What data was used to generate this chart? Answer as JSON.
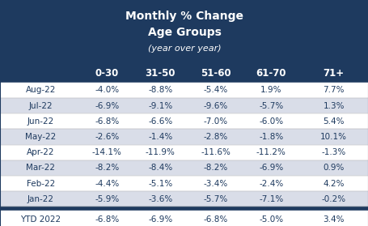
{
  "title_lines": [
    "Monthly % Change",
    "Age Groups",
    "(year over year)"
  ],
  "col_headers": [
    "0-30",
    "31-50",
    "51-60",
    "61-70",
    "71+"
  ],
  "row_labels": [
    "Aug-22",
    "Jul-22",
    "Jun-22",
    "May-22",
    "Apr-22",
    "Mar-22",
    "Feb-22",
    "Jan-22"
  ],
  "table_data": [
    [
      "-4.0%",
      "-8.8%",
      "-5.4%",
      "1.9%",
      "7.7%"
    ],
    [
      "-6.9%",
      "-9.1%",
      "-9.6%",
      "-5.7%",
      "1.3%"
    ],
    [
      "-6.8%",
      "-6.6%",
      "-7.0%",
      "-6.0%",
      "5.4%"
    ],
    [
      "-2.6%",
      "-1.4%",
      "-2.8%",
      "-1.8%",
      "10.1%"
    ],
    [
      "-14.1%",
      "-11.9%",
      "-11.6%",
      "-11.2%",
      "-1.3%"
    ],
    [
      "-8.2%",
      "-8.4%",
      "-8.2%",
      "-6.9%",
      "0.9%"
    ],
    [
      "-4.4%",
      "-5.1%",
      "-3.4%",
      "-2.4%",
      "4.2%"
    ],
    [
      "-5.9%",
      "-3.6%",
      "-5.7%",
      "-7.1%",
      "-0.2%"
    ]
  ],
  "ytd_label": "YTD 2022",
  "ytd_data": [
    "-6.8%",
    "-6.9%",
    "-6.8%",
    "-5.0%",
    "3.4%"
  ],
  "header_bg": "#1e3a5f",
  "header_text": "#ffffff",
  "col_header_bg": "#1e3a5f",
  "col_header_text": "#ffffff",
  "row_alt_colors": [
    "#ffffff",
    "#d9dde8"
  ],
  "ytd_bg": "#ffffff",
  "ytd_text": "#1e3a5f",
  "border_color": "#1e3a5f",
  "data_text_color": "#1e3a5f",
  "row_label_color": "#1e3a5f"
}
